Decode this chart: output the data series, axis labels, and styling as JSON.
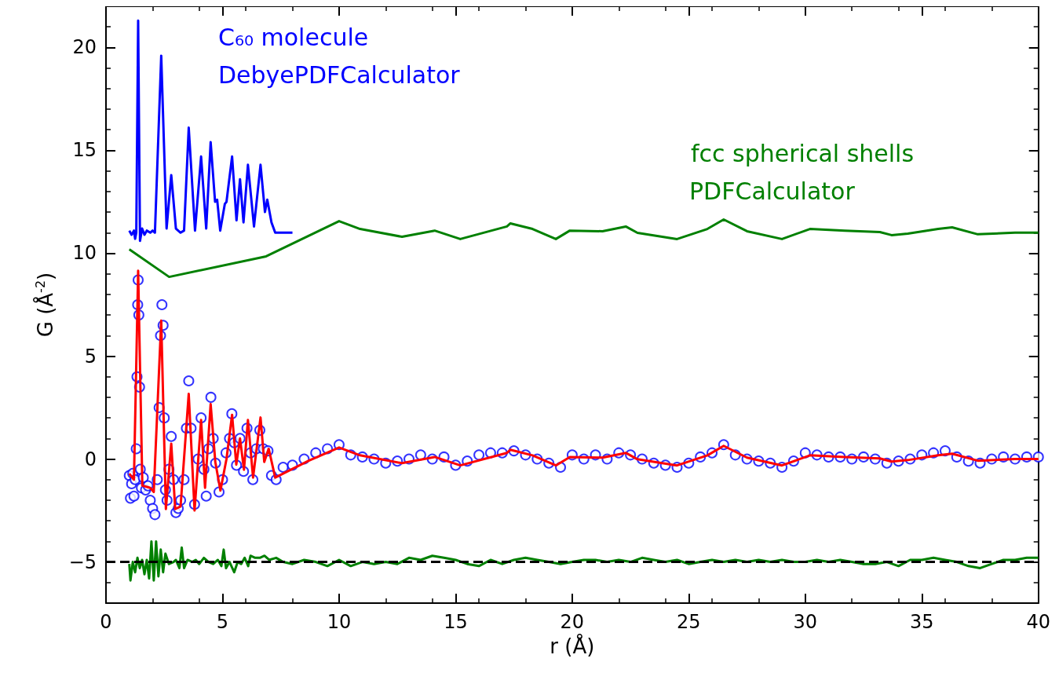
{
  "chart_data": {
    "type": "line",
    "xlabel": "r (Å)",
    "ylabel": "G (Å$^{-2}$)",
    "xlim": [
      0,
      40
    ],
    "xticks": [
      0,
      5,
      10,
      15,
      20,
      25,
      30,
      35,
      40
    ],
    "ylim": [
      -7,
      22
    ],
    "yticks": [
      {
        "value": -5,
        "label": "−5"
      },
      0,
      5,
      10,
      15,
      20
    ],
    "grid": false,
    "series": [
      {
        "type": "scatter",
        "marker": "circle",
        "color": "#0000ff",
        "x": [
          1.0,
          1.05,
          1.1,
          1.15,
          1.2,
          1.25,
          1.3,
          1.33,
          1.36,
          1.38,
          1.41,
          1.44,
          1.47,
          1.52,
          1.6,
          1.7,
          1.8,
          1.9,
          2.0,
          2.1,
          2.2,
          2.28,
          2.34,
          2.4,
          2.45,
          2.5,
          2.55,
          2.62,
          2.7,
          2.8,
          2.9,
          3.0,
          3.1,
          3.2,
          3.35,
          3.45,
          3.55,
          3.65,
          3.8,
          3.95,
          4.08,
          4.2,
          4.3,
          4.4,
          4.5,
          4.6,
          4.7,
          4.85,
          5.0,
          5.15,
          5.3,
          5.4,
          5.5,
          5.6,
          5.75,
          5.9,
          6.05,
          6.2,
          6.3,
          6.45,
          6.6,
          6.75,
          6.95,
          7.1,
          7.3,
          7.6,
          8.0,
          8.5,
          9.0,
          9.5,
          10.0,
          10.5,
          11.0,
          11.5,
          12.0,
          12.5,
          13.0,
          13.5,
          14.0,
          14.5,
          15.0,
          15.5,
          16.0,
          16.5,
          17.0,
          17.5,
          18.0,
          18.5,
          19.0,
          19.5,
          20.0,
          20.5,
          21.0,
          21.5,
          22.0,
          22.5,
          23.0,
          23.5,
          24.0,
          24.5,
          25.0,
          25.5,
          26.0,
          26.5,
          27.0,
          27.5,
          28.0,
          28.5,
          29.0,
          29.5,
          30.0,
          30.5,
          31.0,
          31.5,
          32.0,
          32.5,
          33.0,
          33.5,
          34.0,
          34.5,
          35.0,
          35.5,
          36.0,
          36.5,
          37.0,
          37.5,
          38.0,
          38.5,
          39.0,
          39.5,
          40.0
        ],
        "values": [
          -0.8,
          -1.9,
          -1.2,
          -0.7,
          -1.8,
          -1.0,
          0.5,
          4.0,
          7.5,
          8.7,
          7.0,
          3.5,
          -0.5,
          -1.4,
          -0.9,
          -1.5,
          -1.3,
          -2.0,
          -2.4,
          -2.7,
          -1.0,
          2.5,
          6.0,
          7.5,
          6.5,
          2.0,
          -1.5,
          -2.0,
          -0.5,
          1.1,
          -1.0,
          -2.6,
          -2.4,
          -2.0,
          -1.0,
          1.5,
          3.8,
          1.5,
          -2.2,
          0.0,
          2.0,
          -0.5,
          -1.8,
          0.5,
          3.0,
          1.0,
          -0.2,
          -1.6,
          -1.0,
          0.3,
          1.0,
          2.2,
          0.8,
          -0.3,
          1.0,
          -0.6,
          1.5,
          0.3,
          -1.0,
          0.5,
          1.4,
          0.5,
          0.4,
          -0.8,
          -1.0,
          -0.4,
          -0.3,
          0.0,
          0.3,
          0.5,
          0.7,
          0.2,
          0.1,
          0.0,
          -0.2,
          -0.1,
          0.0,
          0.2,
          0.0,
          0.1,
          -0.3,
          -0.1,
          0.2,
          0.3,
          0.3,
          0.4,
          0.2,
          0.0,
          -0.2,
          -0.4,
          0.2,
          0.0,
          0.2,
          0.0,
          0.3,
          0.2,
          0.0,
          -0.2,
          -0.3,
          -0.4,
          -0.2,
          0.1,
          0.3,
          0.7,
          0.2,
          0.0,
          -0.1,
          -0.2,
          -0.4,
          -0.1,
          0.3,
          0.2,
          0.1,
          0.1,
          0.0,
          0.1,
          0.0,
          -0.2,
          -0.1,
          0.0,
          0.2,
          0.3,
          0.4,
          0.1,
          -0.1,
          -0.2,
          0.0,
          0.1,
          0.0,
          0.1,
          0.1
        ]
      },
      {
        "marker": "none",
        "color": "#ff0000",
        "x": [
          1.0,
          1.2,
          1.38,
          1.56,
          1.9,
          2.05,
          2.37,
          2.57,
          2.8,
          2.97,
          3.2,
          3.55,
          3.8,
          4.08,
          4.25,
          4.49,
          4.69,
          4.91,
          5.17,
          5.41,
          5.59,
          5.75,
          5.92,
          6.09,
          6.31,
          6.63,
          6.79,
          6.98,
          7.26,
          8.7,
          10.0,
          10.9,
          12.7,
          14.1,
          15.2,
          17.2,
          17.35,
          18.3,
          19.3,
          19.9,
          21.3,
          22.3,
          22.8,
          24.5,
          25.8,
          26.5,
          27.5,
          29.0,
          30.2,
          31.7,
          33.2,
          33.7,
          34.4,
          35.7,
          36.3,
          37.4,
          39.0,
          40.0
        ],
        "values": [
          -0.71,
          -1.0,
          9.15,
          -1.29,
          -1.4,
          -1.6,
          6.73,
          -2.43,
          0.75,
          -2.43,
          -2.3,
          3.17,
          -2.5,
          1.9,
          -1.4,
          2.67,
          -0.14,
          -1.53,
          0.0,
          2.15,
          -0.27,
          1.0,
          -0.52,
          1.9,
          -0.9,
          2.02,
          -0.14,
          0.5,
          -0.9,
          -0.08,
          0.56,
          0.18,
          -0.2,
          0.1,
          -0.31,
          0.3,
          0.45,
          0.18,
          -0.31,
          0.1,
          0.07,
          0.3,
          -0.01,
          -0.31,
          0.18,
          0.64,
          0.07,
          -0.31,
          0.18,
          0.1,
          0.03,
          -0.12,
          -0.05,
          0.18,
          0.26,
          -0.08,
          0.0,
          0.0
        ]
      },
      {
        "marker": "none",
        "color": "#0000ff",
        "x": [
          1.0,
          1.1,
          1.2,
          1.25,
          1.3,
          1.38,
          1.46,
          1.55,
          1.65,
          1.75,
          1.9,
          2.0,
          2.1,
          2.37,
          2.6,
          2.8,
          3.0,
          3.2,
          3.35,
          3.55,
          3.82,
          4.08,
          4.3,
          4.49,
          4.68,
          4.77,
          4.9,
          5.1,
          5.17,
          5.41,
          5.6,
          5.75,
          5.9,
          6.09,
          6.35,
          6.63,
          6.82,
          6.92,
          7.1,
          7.26,
          8.0
        ],
        "values": [
          11.1,
          10.9,
          11.1,
          10.7,
          11.0,
          21.3,
          10.6,
          11.2,
          10.9,
          11.1,
          11.0,
          11.1,
          11.0,
          19.6,
          11.2,
          13.8,
          11.2,
          11.0,
          11.1,
          16.1,
          11.1,
          14.7,
          11.2,
          15.4,
          12.5,
          12.6,
          11.1,
          12.4,
          12.5,
          14.7,
          11.6,
          13.6,
          11.5,
          14.3,
          11.3,
          14.3,
          12.0,
          12.6,
          11.5,
          11.0,
          11.0
        ]
      },
      {
        "marker": "none",
        "color": "#008000",
        "x": [
          1.0,
          2.71,
          6.87,
          10.0,
          10.9,
          12.7,
          14.1,
          15.2,
          17.2,
          17.35,
          18.3,
          19.3,
          19.9,
          21.3,
          22.3,
          22.8,
          24.5,
          25.8,
          26.5,
          27.5,
          29.0,
          30.2,
          31.7,
          33.2,
          33.7,
          34.4,
          35.7,
          36.3,
          37.4,
          39.0,
          40.0
        ],
        "values": [
          10.19,
          8.85,
          9.85,
          11.56,
          11.18,
          10.8,
          11.1,
          10.69,
          11.3,
          11.45,
          11.18,
          10.69,
          11.1,
          11.07,
          11.3,
          10.99,
          10.69,
          11.18,
          11.64,
          11.07,
          10.69,
          11.18,
          11.1,
          11.03,
          10.88,
          10.95,
          11.18,
          11.26,
          10.92,
          11.0,
          11.0
        ]
      },
      {
        "marker": "none",
        "color": "#008000",
        "x": [
          1.0,
          1.05,
          1.15,
          1.25,
          1.35,
          1.45,
          1.55,
          1.65,
          1.75,
          1.85,
          1.95,
          2.05,
          2.15,
          2.25,
          2.35,
          2.45,
          2.55,
          2.7,
          2.9,
          3.0,
          3.15,
          3.25,
          3.35,
          3.5,
          3.7,
          3.85,
          4.0,
          4.2,
          4.4,
          4.6,
          4.8,
          4.95,
          5.05,
          5.15,
          5.3,
          5.5,
          5.65,
          5.8,
          5.95,
          6.1,
          6.2,
          6.4,
          6.6,
          6.8,
          7.0,
          7.3,
          7.6,
          8.0,
          8.5,
          9.0,
          9.5,
          10.0,
          10.5,
          11.0,
          11.5,
          12.0,
          12.5,
          13.0,
          13.5,
          14.0,
          14.5,
          15.0,
          15.5,
          16.0,
          16.5,
          17.0,
          17.5,
          18.0,
          18.5,
          19.0,
          19.5,
          20.0,
          20.5,
          21.0,
          21.5,
          22.0,
          22.5,
          23.0,
          23.5,
          24.0,
          24.5,
          25.0,
          25.5,
          26.0,
          26.5,
          27.0,
          27.5,
          28.0,
          28.5,
          29.0,
          29.5,
          30.0,
          30.5,
          31.0,
          31.5,
          32.0,
          32.5,
          33.0,
          33.5,
          34.0,
          34.5,
          35.0,
          35.5,
          36.0,
          36.5,
          37.0,
          37.5,
          38.0,
          38.5,
          39.0,
          39.5,
          40.0
        ],
        "values": [
          -5.1,
          -5.9,
          -5.0,
          -5.5,
          -4.8,
          -5.3,
          -4.9,
          -5.6,
          -4.9,
          -5.8,
          -4.0,
          -5.9,
          -4.0,
          -5.7,
          -4.4,
          -5.5,
          -4.6,
          -5.1,
          -5.0,
          -4.9,
          -5.3,
          -4.3,
          -5.3,
          -4.9,
          -5.0,
          -4.9,
          -5.1,
          -4.8,
          -5.0,
          -5.1,
          -4.9,
          -5.2,
          -4.4,
          -5.3,
          -5.0,
          -5.5,
          -5.0,
          -5.1,
          -4.8,
          -5.2,
          -4.7,
          -4.8,
          -4.8,
          -4.7,
          -4.9,
          -4.8,
          -5.0,
          -5.1,
          -4.9,
          -5.0,
          -5.2,
          -4.9,
          -5.2,
          -5.0,
          -5.1,
          -5.0,
          -5.1,
          -4.8,
          -4.9,
          -4.7,
          -4.8,
          -4.9,
          -5.1,
          -5.2,
          -4.9,
          -5.1,
          -4.9,
          -4.8,
          -4.9,
          -5.0,
          -5.1,
          -5.0,
          -4.9,
          -4.9,
          -5.0,
          -4.9,
          -5.0,
          -4.8,
          -4.9,
          -5.0,
          -4.9,
          -5.1,
          -5.0,
          -4.9,
          -5.0,
          -4.9,
          -5.0,
          -4.9,
          -5.0,
          -4.9,
          -5.0,
          -5.0,
          -4.9,
          -5.0,
          -4.9,
          -5.0,
          -5.1,
          -5.1,
          -5.0,
          -5.2,
          -4.9,
          -4.9,
          -4.8,
          -4.9,
          -5.0,
          -5.2,
          -5.3,
          -5.1,
          -4.9,
          -4.9,
          -4.8,
          -4.8
        ]
      }
    ],
    "ref_lines": [
      {
        "axis": "y",
        "value": -5,
        "color": "#000000",
        "line_style": "dashed"
      }
    ],
    "annotations": [
      "C₆₀ molecule",
      "DebyePDFCalculator",
      "fcc spherical shells",
      "PDFCalculator"
    ]
  }
}
